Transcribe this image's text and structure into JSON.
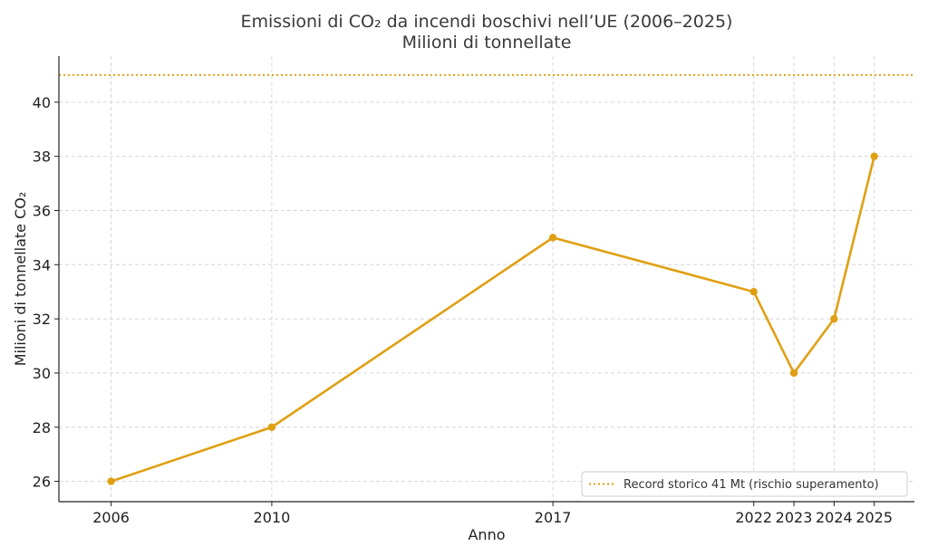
{
  "chart_data": {
    "type": "line",
    "title": "Emissioni di CO₂ da incendi boschivi nell’UE (2006–2025)",
    "subtitle": "Milioni di tonnellate",
    "xlabel": "Anno",
    "ylabel": "Milioni di tonnellate CO₂",
    "x": [
      2006,
      2010,
      2017,
      2022,
      2023,
      2024,
      2025
    ],
    "x_tick_labels": [
      "2006",
      "2010",
      "2017",
      "2022",
      "2023",
      "2024",
      "2025"
    ],
    "series": [
      {
        "values": [
          26,
          28,
          35,
          33,
          30,
          32,
          38
        ],
        "color": "#e0a014"
      }
    ],
    "y_ticks": [
      26,
      28,
      30,
      32,
      34,
      36,
      38,
      40
    ],
    "xlim": [
      2004.7,
      2026.0
    ],
    "ylim": [
      25.25,
      41.7
    ],
    "reference_line": {
      "value": 41,
      "label": "Record storico 41 Mt (rischio superamento)",
      "style": "dotted",
      "color": "#e0a014"
    },
    "grid": true,
    "legend_position": "bottom-right"
  }
}
